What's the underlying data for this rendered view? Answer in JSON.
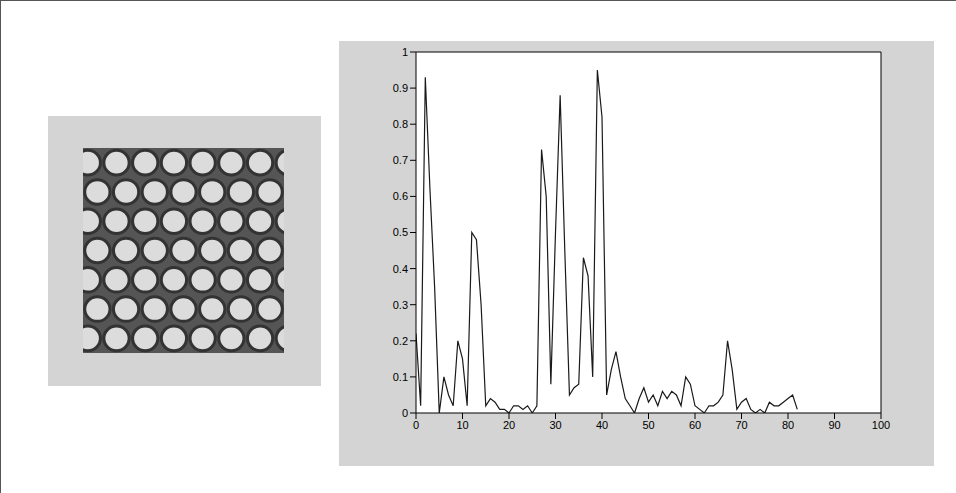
{
  "chart_data": {
    "type": "line",
    "x": [
      0,
      1,
      2,
      3,
      4,
      5,
      6,
      7,
      8,
      9,
      10,
      11,
      12,
      13,
      14,
      15,
      16,
      17,
      18,
      19,
      20,
      21,
      22,
      23,
      24,
      25,
      26,
      27,
      28,
      29,
      30,
      31,
      32,
      33,
      34,
      35,
      36,
      37,
      38,
      39,
      40,
      41,
      42,
      43,
      44,
      45,
      46,
      47,
      48,
      49,
      50,
      51,
      52,
      53,
      54,
      55,
      56,
      57,
      58,
      59,
      60,
      61,
      62,
      63,
      64,
      65,
      66,
      67,
      68,
      69,
      70,
      71,
      72,
      73,
      74,
      75,
      76,
      77,
      78,
      79,
      80,
      81,
      82
    ],
    "values": [
      0.22,
      0.02,
      0.93,
      0.62,
      0.35,
      0.0,
      0.1,
      0.05,
      0.02,
      0.2,
      0.15,
      0.02,
      0.5,
      0.48,
      0.3,
      0.02,
      0.04,
      0.03,
      0.01,
      0.01,
      0.0,
      0.02,
      0.02,
      0.01,
      0.02,
      0.0,
      0.02,
      0.73,
      0.6,
      0.08,
      0.5,
      0.88,
      0.45,
      0.05,
      0.07,
      0.08,
      0.43,
      0.38,
      0.1,
      0.95,
      0.82,
      0.05,
      0.12,
      0.17,
      0.1,
      0.04,
      0.02,
      0.0,
      0.04,
      0.07,
      0.03,
      0.05,
      0.02,
      0.06,
      0.04,
      0.06,
      0.05,
      0.02,
      0.1,
      0.08,
      0.02,
      0.01,
      0.0,
      0.02,
      0.02,
      0.03,
      0.05,
      0.2,
      0.12,
      0.01,
      0.03,
      0.04,
      0.01,
      0.0,
      0.01,
      0.0,
      0.03,
      0.02,
      0.02,
      0.03,
      0.04,
      0.05,
      0.01
    ],
    "color": "#1a1a1a",
    "xlim": [
      0,
      100
    ],
    "ylim": [
      0,
      1
    ],
    "xticks": [
      0,
      10,
      20,
      30,
      40,
      50,
      60,
      70,
      80,
      90,
      100
    ],
    "yticks": [
      0,
      0.1,
      0.2,
      0.3,
      0.4,
      0.5,
      0.6,
      0.7,
      0.8,
      0.9,
      1
    ],
    "grid": false
  }
}
